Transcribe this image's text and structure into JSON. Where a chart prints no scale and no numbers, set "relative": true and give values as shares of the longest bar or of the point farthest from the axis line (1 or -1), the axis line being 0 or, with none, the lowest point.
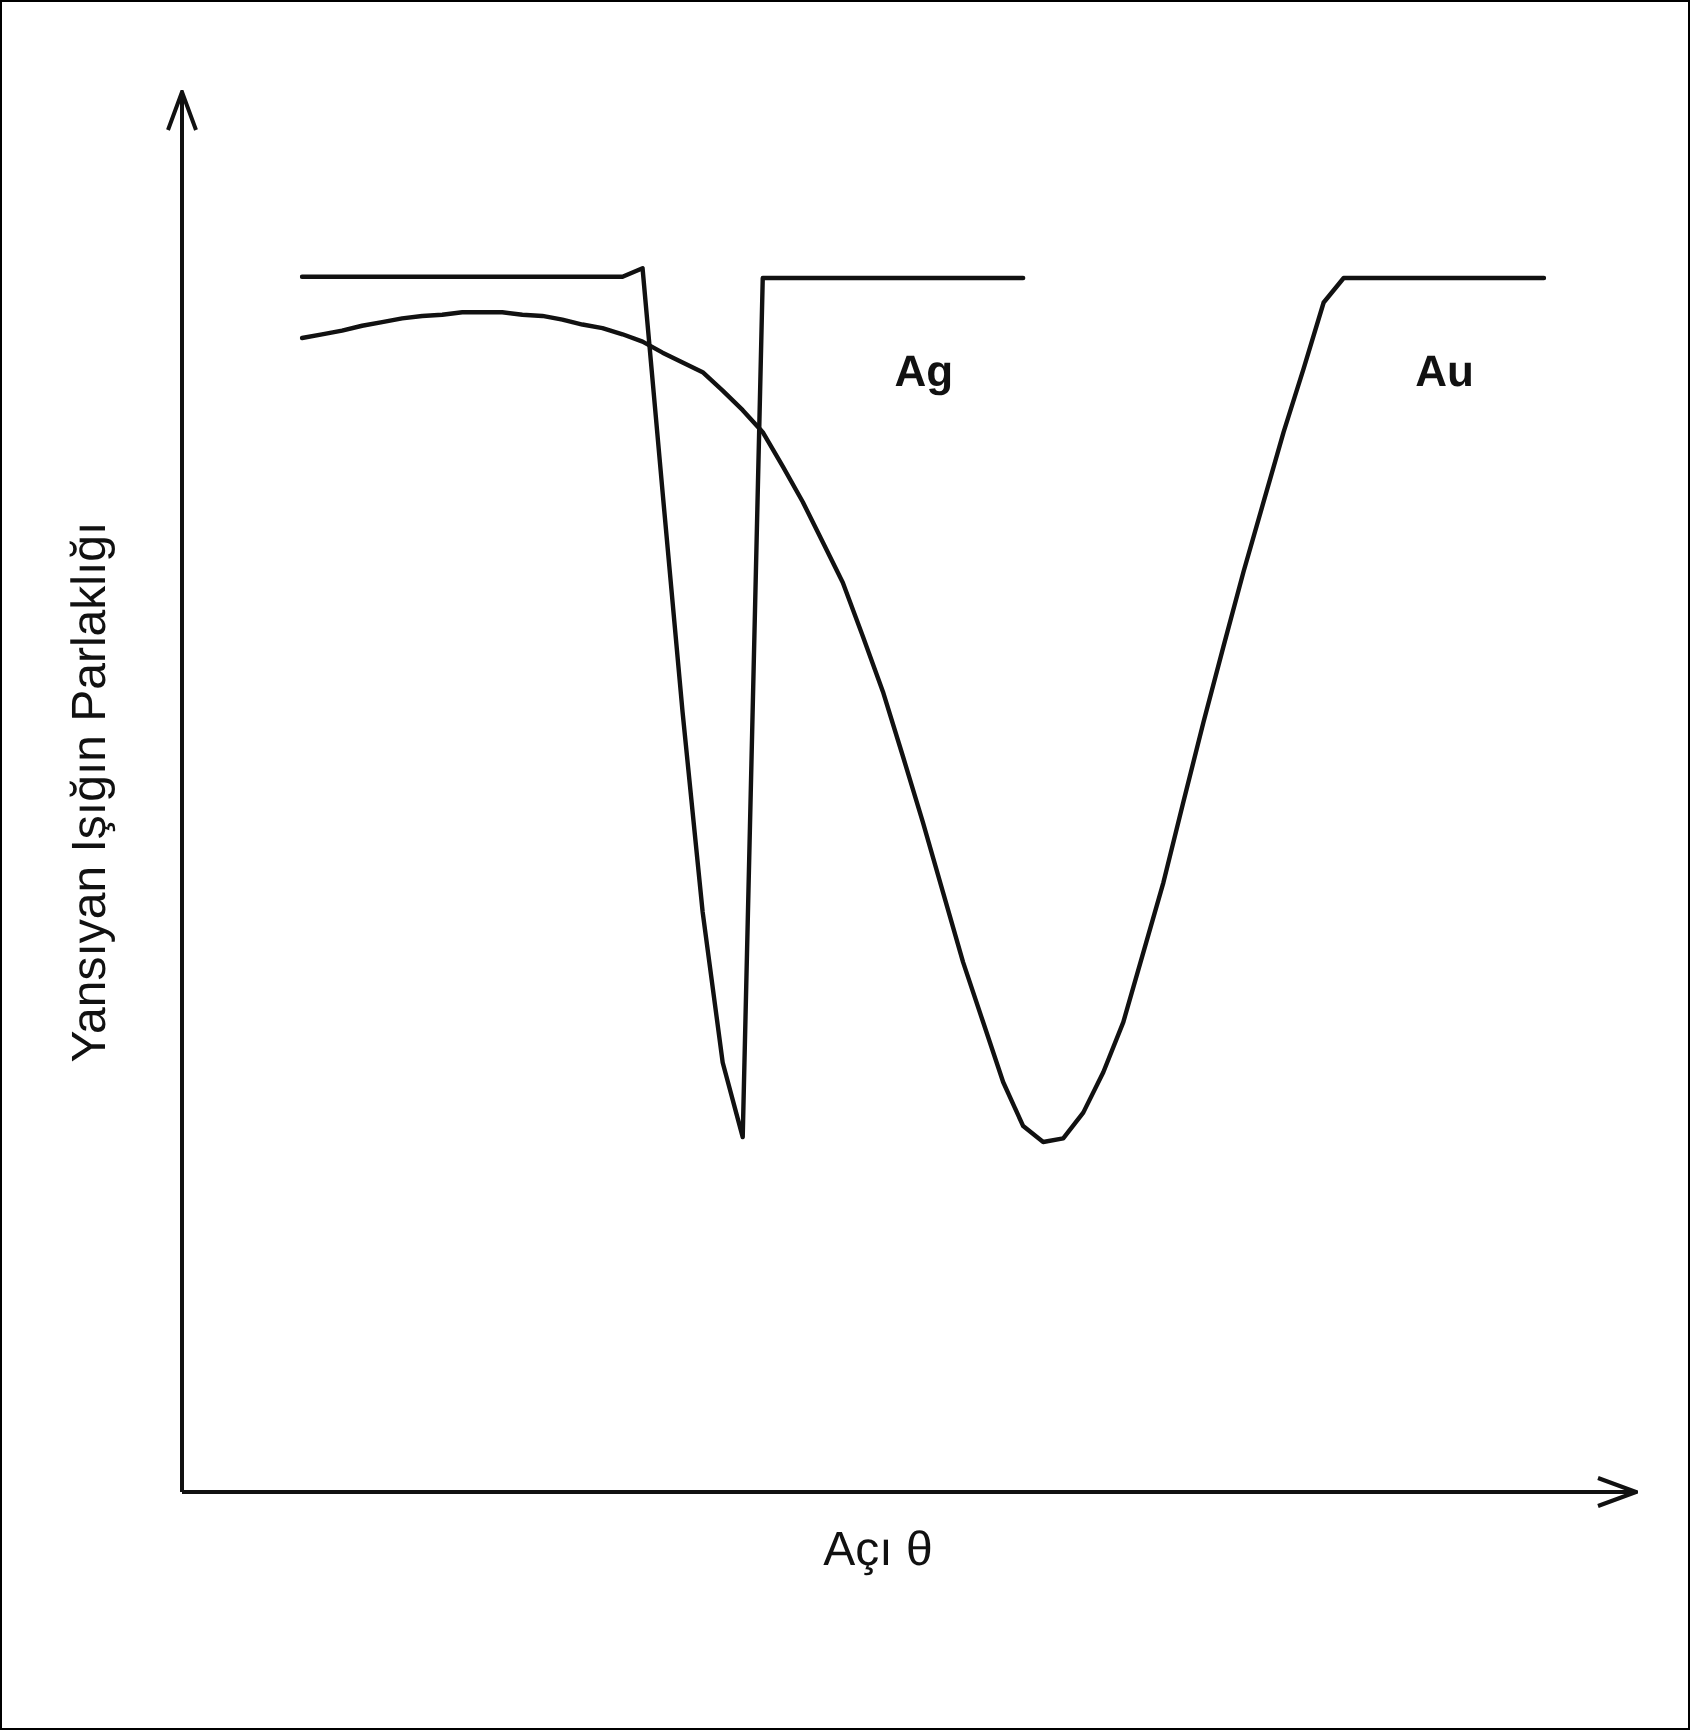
{
  "chart_data": {
    "type": "line",
    "relative": true,
    "xlabel": "Açı θ",
    "ylabel": "Yansıyan Işığın Parlaklığı",
    "marker": "none",
    "legend": false,
    "categories": [
      null,
      null,
      null,
      null,
      null,
      null,
      null,
      null,
      null,
      null,
      null,
      null,
      null,
      null,
      null,
      null,
      null,
      null,
      null,
      null,
      null,
      null,
      null,
      null,
      null,
      null,
      null,
      null,
      null,
      null,
      null,
      null,
      null,
      null,
      null,
      null,
      null,
      null,
      null,
      null,
      null,
      null,
      null,
      null,
      null,
      null,
      null,
      null,
      null,
      null,
      null,
      null,
      null,
      null,
      null,
      null,
      null,
      null,
      null,
      null,
      null,
      null,
      null
    ],
    "series": [
      {
        "name": "Ag",
        "color": "#111111",
        "values": [
          0.993,
          0.993,
          0.993,
          0.993,
          0.993,
          0.993,
          0.993,
          0.993,
          0.993,
          0.993,
          0.993,
          0.993,
          0.993,
          0.993,
          0.993,
          0.993,
          0.993,
          1,
          0.817,
          0.637,
          0.474,
          0.351,
          0.29,
          0.992,
          0.992,
          0.992,
          0.992,
          0.992,
          0.992,
          0.992,
          0.992,
          0.992,
          0.992,
          0.992,
          0.992,
          0.992,
          0.992,
          null,
          null,
          null,
          null,
          null,
          null,
          null,
          null,
          null,
          null,
          null,
          null,
          null,
          null,
          null,
          null,
          null,
          null,
          null,
          null,
          null,
          null,
          null,
          null,
          null,
          null
        ]
      },
      {
        "name": "Au",
        "color": "#111111",
        "values": [
          0.943,
          0.946,
          0.949,
          0.953,
          0.956,
          0.959,
          0.961,
          0.962,
          0.964,
          0.964,
          0.964,
          0.962,
          0.961,
          0.958,
          0.954,
          0.951,
          0.946,
          0.94,
          0.931,
          0.923,
          0.915,
          0.9,
          0.884,
          0.866,
          0.838,
          0.809,
          0.776,
          0.743,
          0.699,
          0.654,
          0.601,
          0.547,
          0.49,
          0.433,
          0.384,
          0.335,
          0.299,
          0.286,
          0.289,
          0.31,
          0.343,
          0.384,
          0.441,
          0.498,
          0.564,
          0.629,
          0.691,
          0.752,
          0.809,
          0.866,
          0.918,
          0.972,
          0.992,
          0.992,
          0.992,
          0.992,
          0.992,
          0.992,
          0.992,
          0.992,
          0.992,
          0.992,
          0.992
        ]
      }
    ]
  }
}
